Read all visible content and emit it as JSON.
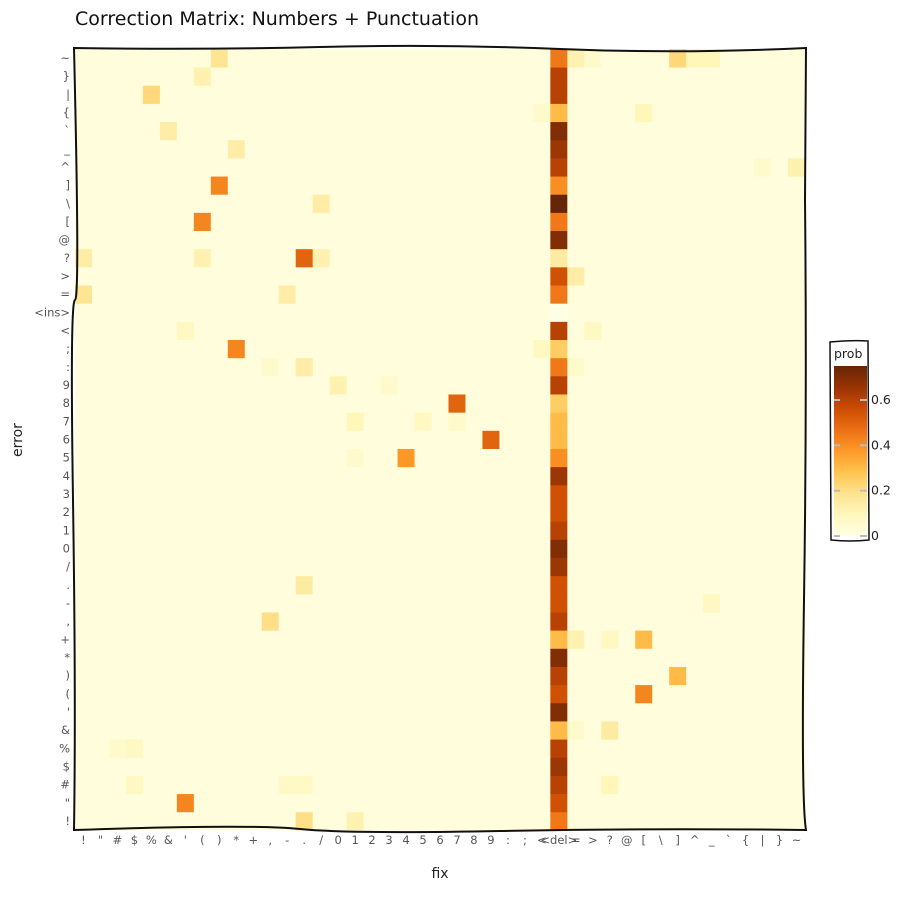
{
  "chart_data": {
    "type": "heatmap",
    "title": "Correction Matrix: Numbers + Punctuation",
    "xlabel": "fix",
    "ylabel": "error",
    "x_categories": [
      "!",
      "\"",
      "#",
      "$",
      "%",
      "&",
      "'",
      "(",
      ")",
      "*",
      "+",
      ",",
      "-",
      ".",
      "/",
      "0",
      "1",
      "2",
      "3",
      "4",
      "5",
      "6",
      "7",
      "8",
      "9",
      ":",
      ";",
      "<",
      "<del>",
      "=",
      ">",
      "?",
      "@",
      "[",
      "\\",
      "]",
      "^",
      "_",
      "`",
      "{",
      "|",
      "}",
      "~"
    ],
    "y_categories": [
      "!",
      "\"",
      "#",
      "$",
      "%",
      "&",
      "'",
      "(",
      ")",
      "*",
      "+",
      ",",
      "-",
      ".",
      "/",
      "0",
      "1",
      "2",
      "3",
      "4",
      "5",
      "6",
      "7",
      "8",
      "9",
      ":",
      ";",
      "<",
      "<ins>",
      "=",
      ">",
      "?",
      "@",
      "[",
      "\\",
      "]",
      "^",
      "_",
      "`",
      "{",
      "|",
      "}",
      "~"
    ],
    "x_tick_labels": [
      "!",
      "\"",
      "#",
      "$",
      "%",
      "&",
      "'",
      "(",
      ")",
      "*",
      "+",
      ",",
      "-",
      ".",
      "/",
      "0",
      "1",
      "2",
      "3",
      "4",
      "5",
      "6",
      "7",
      "8",
      "9",
      ":",
      ";",
      "<",
      "<del>",
      "=",
      ">",
      "?",
      "@",
      "[",
      "\\",
      "]",
      "^",
      "_",
      "`",
      "{",
      "|",
      "}",
      "~"
    ],
    "y_tick_labels": [
      "!",
      "\"",
      "#",
      "$",
      "%",
      "&",
      "'",
      "(",
      ")",
      "*",
      "+",
      ",",
      "-",
      ".",
      "/",
      "0",
      "1",
      "2",
      "3",
      "4",
      "5",
      "6",
      "7",
      "8",
      "9",
      ":",
      ";",
      "<",
      "<ins>",
      "=",
      ">",
      "?",
      "@",
      "[",
      "\\",
      "]",
      "^",
      "_",
      "`",
      "{",
      "|",
      "}",
      "~"
    ],
    "base_value": 0.02,
    "column_values": {
      "<del>": {
        "!": 0.45,
        "\"": 0.55,
        "#": 0.6,
        "$": 0.65,
        "%": 0.6,
        "&": 0.3,
        "'": 0.7,
        "(": 0.55,
        ")": 0.6,
        "*": 0.7,
        "+": 0.3,
        ",": 0.6,
        "-": 0.55,
        ".": 0.55,
        "/": 0.65,
        "0": 0.7,
        "1": 0.6,
        "2": 0.55,
        "3": 0.55,
        "4": 0.65,
        "5": 0.4,
        "6": 0.3,
        "7": 0.3,
        "8": 0.25,
        "9": 0.6,
        ":": 0.45,
        ";": 0.25,
        "<": 0.6,
        "<ins>": 0.0,
        "=": 0.45,
        ">": 0.55,
        "?": 0.15,
        "@": 0.7,
        "[": 0.45,
        "\\": 0.75,
        "]": 0.4,
        "^": 0.6,
        "_": 0.65,
        "`": 0.7,
        "{": 0.3,
        "|": 0.6,
        "}": 0.6,
        "~": 0.45
      }
    },
    "cells": [
      {
        "error": "!",
        "fix": ".",
        "value": 0.2
      },
      {
        "error": "!",
        "fix": "1",
        "value": 0.12
      },
      {
        "error": "\"",
        "fix": "'",
        "value": 0.42
      },
      {
        "error": "#",
        "fix": "$",
        "value": 0.08
      },
      {
        "error": "#",
        "fix": "?",
        "value": 0.1
      },
      {
        "error": "#",
        "fix": "-",
        "value": 0.07
      },
      {
        "error": "#",
        "fix": ".",
        "value": 0.07
      },
      {
        "error": "&",
        "fix": "=",
        "value": 0.06
      },
      {
        "error": "&",
        "fix": "?",
        "value": 0.15
      },
      {
        "error": "%",
        "fix": "#",
        "value": 0.06
      },
      {
        "error": "%",
        "fix": "$",
        "value": 0.08
      },
      {
        "error": "(",
        "fix": "[",
        "value": 0.42
      },
      {
        "error": ")",
        "fix": "]",
        "value": 0.3
      },
      {
        "error": "+",
        "fix": "=",
        "value": 0.12
      },
      {
        "error": "+",
        "fix": "[",
        "value": 0.3
      },
      {
        "error": "+",
        "fix": "?",
        "value": 0.08
      },
      {
        "error": ".",
        "fix": ".",
        "value": 0.15
      },
      {
        "error": "-",
        "fix": "_",
        "value": 0.08
      },
      {
        "error": ",",
        "fix": ",",
        "value": 0.2
      },
      {
        "error": "5",
        "fix": "4",
        "value": 0.38
      },
      {
        "error": "5",
        "fix": "1",
        "value": 0.06
      },
      {
        "error": "6",
        "fix": "9",
        "value": 0.5
      },
      {
        "error": "7",
        "fix": "5",
        "value": 0.08
      },
      {
        "error": "7",
        "fix": "1",
        "value": 0.1
      },
      {
        "error": "7",
        "fix": "7",
        "value": 0.06
      },
      {
        "error": "8",
        "fix": "7",
        "value": 0.5
      },
      {
        "error": "9",
        "fix": "0",
        "value": 0.12
      },
      {
        "error": "9",
        "fix": "3",
        "value": 0.06
      },
      {
        "error": ":",
        "fix": ".",
        "value": 0.14
      },
      {
        "error": ":",
        "fix": ",",
        "value": 0.06
      },
      {
        "error": ":",
        "fix": "=",
        "value": 0.06
      },
      {
        "error": ";",
        "fix": "*",
        "value": 0.42
      },
      {
        "error": ";",
        "fix": "<",
        "value": 0.08
      },
      {
        "error": "<",
        "fix": "'",
        "value": 0.08
      },
      {
        "error": "<",
        "fix": ">",
        "value": 0.08
      },
      {
        "error": "=",
        "fix": "!",
        "value": 0.18
      },
      {
        "error": "=",
        "fix": "-",
        "value": 0.14
      },
      {
        "error": ">",
        "fix": "=",
        "value": 0.14
      },
      {
        "error": "?",
        "fix": "!",
        "value": 0.14
      },
      {
        "error": "?",
        "fix": ".",
        "value": 0.5
      },
      {
        "error": "?",
        "fix": "/",
        "value": 0.12
      },
      {
        "error": "?",
        "fix": "(",
        "value": 0.12
      },
      {
        "error": "[",
        "fix": "(",
        "value": 0.42
      },
      {
        "error": "\\",
        "fix": "/",
        "value": 0.14
      },
      {
        "error": "]",
        "fix": ")",
        "value": 0.42
      },
      {
        "error": "^",
        "fix": "~",
        "value": 0.12
      },
      {
        "error": "^",
        "fix": "|",
        "value": 0.06
      },
      {
        "error": "_",
        "fix": "*",
        "value": 0.14
      },
      {
        "error": "`",
        "fix": "&",
        "value": 0.14
      },
      {
        "error": "{",
        "fix": "[",
        "value": 0.1
      },
      {
        "error": "{",
        "fix": "<",
        "value": 0.06
      },
      {
        "error": "|",
        "fix": "%",
        "value": 0.22
      },
      {
        "error": "}",
        "fix": "(",
        "value": 0.12
      },
      {
        "error": "~",
        "fix": ")",
        "value": 0.18
      },
      {
        "error": "~",
        "fix": "]",
        "value": 0.22
      },
      {
        "error": "~",
        "fix": "^",
        "value": 0.1
      },
      {
        "error": "~",
        "fix": "_",
        "value": 0.1
      },
      {
        "error": "~",
        "fix": ">",
        "value": 0.06
      },
      {
        "error": "~",
        "fix": "=",
        "value": 0.12
      }
    ],
    "colorbar": {
      "title": "prob",
      "min": 0,
      "max": 0.75,
      "ticks": [
        {
          "value": 0,
          "label": "0"
        },
        {
          "value": 0.2,
          "label": "0.2"
        },
        {
          "value": 0.4,
          "label": "0.4"
        },
        {
          "value": 0.6,
          "label": "0.6"
        }
      ]
    },
    "colorscale": [
      "#ffffe5",
      "#fff7bc",
      "#fee391",
      "#fec44f",
      "#fe9929",
      "#ec7014",
      "#cc4c02",
      "#993404",
      "#662506"
    ]
  }
}
